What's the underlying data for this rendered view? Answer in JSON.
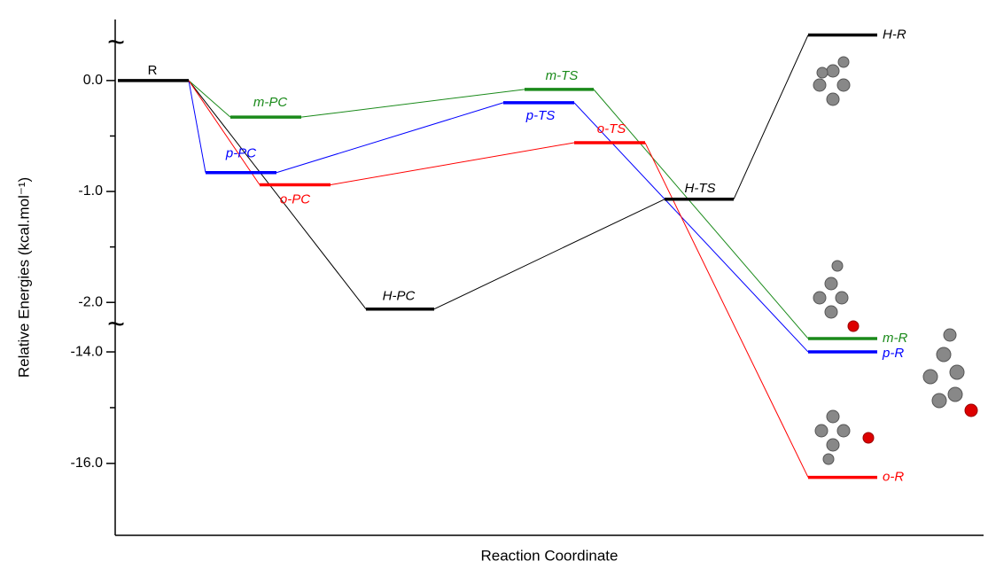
{
  "chart_data": {
    "type": "energy_diagram",
    "ylabel": "Relative Energies (kcal.mol⁻¹)",
    "xlabel": "Reaction Coordinate",
    "axis_segments": [
      {
        "ylim": [
          -2.23,
          0.55
        ],
        "yticks": [
          {
            "value": 0,
            "label": "0.0"
          },
          {
            "value": -1,
            "label": "-1.0"
          },
          {
            "value": -2,
            "label": "-2.0"
          }
        ],
        "minor_yticks": [
          -0.5,
          -1.5
        ]
      },
      {
        "ylim": [
          -17.29,
          -13.57
        ],
        "yticks": [
          {
            "value": -14,
            "label": "-14.0"
          },
          {
            "value": -16,
            "label": "-16.0"
          }
        ],
        "minor_yticks": [
          -15
        ]
      }
    ],
    "levels": [
      {
        "label": "R",
        "value": 0.0,
        "color": "#000000"
      },
      {
        "label": "m-PC",
        "value": -0.33,
        "color": "#1a8a1a"
      },
      {
        "label": "p-PC",
        "value": -0.83,
        "color": "#0000ff"
      },
      {
        "label": "o-PC",
        "value": -0.94,
        "color": "#ff0000"
      },
      {
        "label": "H-PC",
        "value": -2.06,
        "color": "#000000"
      },
      {
        "label": "m-TS",
        "value": -0.08,
        "color": "#1a8a1a"
      },
      {
        "label": "p-TS",
        "value": -0.2,
        "color": "#0000ff"
      },
      {
        "label": "o-TS",
        "value": -0.56,
        "color": "#ff0000"
      },
      {
        "label": "H-TS",
        "value": -1.07,
        "color": "#000000"
      },
      {
        "label": "H-R",
        "value": 0.41,
        "color": "#000000"
      },
      {
        "label": "m-R",
        "value": -13.76,
        "color": "#1a8a1a"
      },
      {
        "label": "p-R",
        "value": -14.0,
        "color": "#0000ff"
      },
      {
        "label": "o-R",
        "value": -16.25,
        "color": "#ff0000"
      }
    ]
  }
}
